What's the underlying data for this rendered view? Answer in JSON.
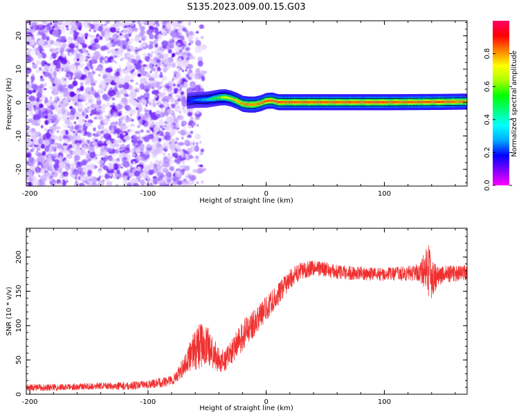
{
  "title": "S135.2023.009.00.15.G03",
  "chart_data": [
    {
      "type": "heatmap",
      "title": "",
      "xlabel": "Height of straight line (km)",
      "ylabel": "Frequency (Hz)",
      "xlim": [
        -203,
        170
      ],
      "ylim": [
        -25,
        24.5
      ],
      "x_ticks": [
        -200,
        -100,
        0,
        100
      ],
      "y_ticks": [
        -20,
        -10,
        0,
        10,
        20
      ],
      "noise_region": {
        "x_range": [
          -203,
          -50
        ],
        "y_range": [
          -25,
          24.5
        ]
      },
      "ridge": {
        "x": [
          -67,
          -60,
          -50,
          -45,
          -40,
          -35,
          -30,
          -25,
          -20,
          -15,
          -10,
          -5,
          0,
          5,
          10,
          50,
          100,
          150,
          170
        ],
        "freq": [
          0.5,
          0.8,
          0.9,
          1.2,
          1.5,
          1.6,
          1.2,
          0.5,
          -0.4,
          -0.6,
          -0.6,
          -0.2,
          0.5,
          0.6,
          0.1,
          0.1,
          0.1,
          0.2,
          0.3
        ],
        "amplitude": [
          0.3,
          0.4,
          0.5,
          0.6,
          0.7,
          0.75,
          0.8,
          0.85,
          0.9,
          0.9,
          0.9,
          0.9,
          0.95,
          0.95,
          0.95,
          0.95,
          0.95,
          0.95,
          0.9
        ]
      },
      "colorbar": {
        "label": "Normalized spectral amplitude",
        "ticks": [
          0.0,
          0.2,
          0.4,
          0.6,
          0.8
        ],
        "range": [
          0,
          1
        ],
        "colors": [
          "#ffffff",
          "#c8a8ff",
          "#8a2be2",
          "#0000ff",
          "#00c8ff",
          "#00ff00",
          "#ffff00",
          "#ff8000",
          "#ff0000",
          "#ff0066"
        ]
      }
    },
    {
      "type": "line",
      "title": "",
      "xlabel": "Height of straight line (km)",
      "ylabel": "SNR (10 * v/v)",
      "xlim": [
        -203,
        170
      ],
      "ylim": [
        0,
        242
      ],
      "x_ticks": [
        -200,
        -100,
        0,
        100
      ],
      "y_ticks": [
        0,
        50,
        100,
        150,
        200
      ],
      "color": "#f03030",
      "series": [
        {
          "x": [
            -203,
            -180,
            -160,
            -140,
            -120,
            -100,
            -90,
            -80,
            -75,
            -70,
            -65,
            -60,
            -55,
            -50,
            -45,
            -40,
            -35,
            -30,
            -25,
            -20,
            -10,
            0,
            10,
            20,
            30,
            40,
            50,
            60,
            80,
            100,
            120,
            130,
            135,
            138,
            140,
            145,
            150,
            160,
            170
          ],
          "y": [
            10,
            10,
            11,
            12,
            12,
            14,
            17,
            20,
            28,
            40,
            55,
            65,
            72,
            70,
            60,
            50,
            48,
            60,
            72,
            85,
            105,
            125,
            145,
            168,
            180,
            185,
            182,
            178,
            176,
            175,
            176,
            178,
            182,
            185,
            170,
            172,
            175,
            176,
            176
          ],
          "noise": [
            5,
            5,
            5,
            5,
            6,
            6,
            7,
            8,
            10,
            14,
            22,
            30,
            34,
            30,
            24,
            18,
            16,
            18,
            20,
            22,
            20,
            18,
            16,
            14,
            13,
            12,
            11,
            11,
            10,
            10,
            11,
            14,
            30,
            45,
            30,
            16,
            13,
            12,
            12
          ]
        }
      ]
    }
  ]
}
